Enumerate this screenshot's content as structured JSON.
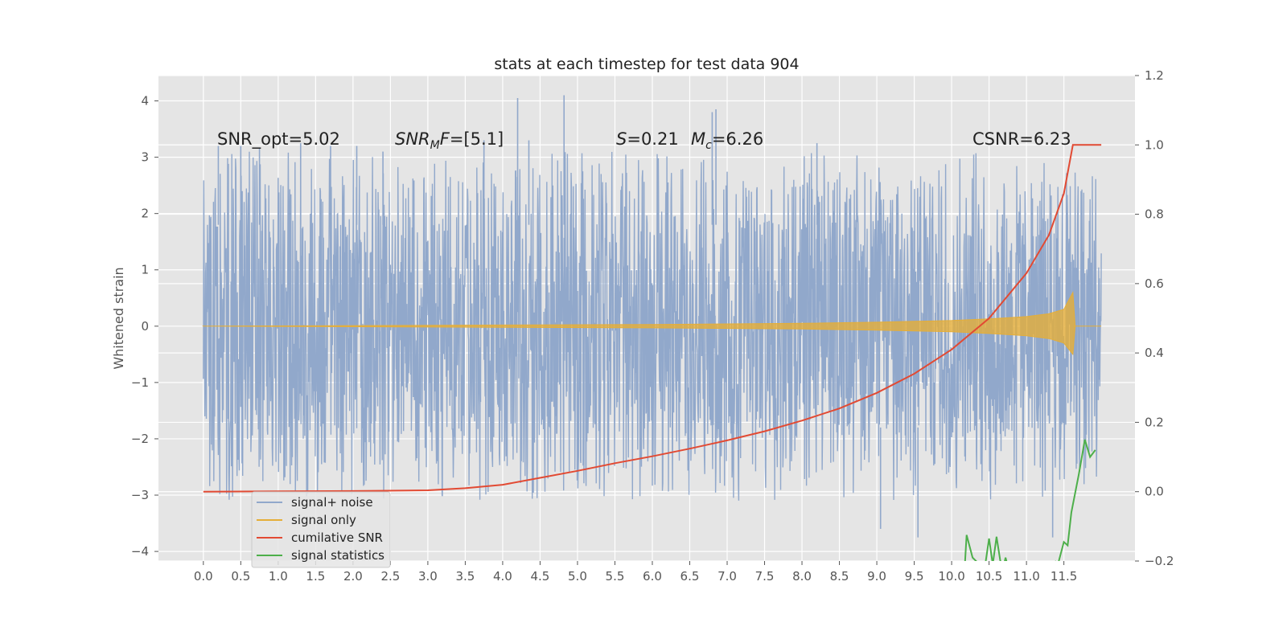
{
  "chart_data": {
    "type": "line",
    "title": "stats at each timestep for test data 904",
    "ylabel": "Whitened strain",
    "xlabel": "",
    "xlim": [
      -0.6,
      12.45
    ],
    "ylim": [
      -4.17,
      4.45
    ],
    "y2lim": [
      -0.2,
      1.2
    ],
    "grid": true,
    "xticks": [
      "0.0",
      "0.5",
      "1.0",
      "1.5",
      "2.0",
      "2.5",
      "3.0",
      "3.5",
      "4.0",
      "4.5",
      "5.0",
      "5.5",
      "6.0",
      "6.5",
      "7.0",
      "7.5",
      "8.0",
      "8.5",
      "9.0",
      "9.5",
      "10.0",
      "10.5",
      "11.0",
      "11.5"
    ],
    "yticks": [
      "4",
      "3",
      "2",
      "1",
      "0",
      "−1",
      "−2",
      "−3",
      "−4"
    ],
    "y2ticks": [
      "1.2",
      "1.0",
      "0.8",
      "0.6",
      "0.4",
      "0.2",
      "0.0",
      "−0.2"
    ],
    "annotations": {
      "snr_opt": "SNR_opt=5.02",
      "snr_mf_sym": "SNR",
      "snr_mf_sub": "M",
      "snr_mf_sym2": "F",
      "snr_mf_val": "=[5.1]",
      "s_sym": "S",
      "s_val": "=0.21",
      "mc_sym": "M",
      "mc_sub": "c",
      "mc_val": "=6.26",
      "csnr": "CSNR=6.23"
    },
    "legend": {
      "position": "lower-left",
      "entries": [
        "signal+ noise",
        "signal only",
        "cumilative SNR",
        "signal statistics"
      ]
    },
    "colors": {
      "signal_noise": "#91a8cb",
      "signal_only": "#e5ae38",
      "cumulative_snr": "#e24a33",
      "signal_stats": "#4daf4a",
      "plot_bg": "#e5e5e5",
      "grid": "#ffffff"
    },
    "series": [
      {
        "name": "signal+ noise",
        "axis": "left",
        "description_kind": "noise_band",
        "x_range": [
          0.0,
          12.0
        ],
        "core_range": [
          -2.0,
          2.0
        ],
        "peak_x": [
          0.2,
          0.5,
          0.75,
          1.3,
          1.7,
          2.05,
          2.4,
          3.75,
          4.2,
          4.35,
          4.82,
          6.8,
          6.85,
          8.2,
          9.05,
          9.55,
          11.35
        ],
        "peak_y": [
          3.2,
          3.2,
          3.15,
          3.25,
          3.2,
          3.2,
          3.1,
          3.3,
          4.05,
          3.3,
          4.1,
          3.8,
          3.85,
          3.25,
          -3.6,
          -3.75,
          -3.75
        ]
      },
      {
        "name": "signal only",
        "axis": "left",
        "x": [
          0.0,
          2.0,
          4.0,
          6.0,
          8.0,
          9.0,
          10.0,
          10.5,
          11.0,
          11.3,
          11.5,
          11.62,
          11.65,
          12.0
        ],
        "upper": [
          0.0,
          0.01,
          0.02,
          0.03,
          0.05,
          0.07,
          0.1,
          0.13,
          0.17,
          0.22,
          0.3,
          0.6,
          0.0,
          0.0
        ],
        "lower": [
          0.0,
          -0.01,
          -0.02,
          -0.03,
          -0.05,
          -0.07,
          -0.1,
          -0.13,
          -0.17,
          -0.22,
          -0.3,
          -0.5,
          0.0,
          0.0
        ]
      },
      {
        "name": "cumilative SNR",
        "axis": "right",
        "x": [
          0.0,
          1.0,
          2.0,
          3.0,
          3.5,
          4.0,
          4.5,
          5.0,
          5.5,
          6.0,
          6.5,
          7.0,
          7.5,
          8.0,
          8.5,
          9.0,
          9.5,
          10.0,
          10.5,
          11.0,
          11.3,
          11.5,
          11.62,
          12.0
        ],
        "y": [
          0.0,
          0.001,
          0.002,
          0.004,
          0.01,
          0.02,
          0.04,
          0.06,
          0.082,
          0.102,
          0.124,
          0.148,
          0.174,
          0.205,
          0.24,
          0.285,
          0.34,
          0.41,
          0.5,
          0.63,
          0.74,
          0.86,
          1.0,
          1.0
        ]
      },
      {
        "name": "signal statistics",
        "axis": "right",
        "x": [
          10.18,
          10.2,
          10.28,
          10.35,
          10.45,
          10.5,
          10.55,
          10.6,
          10.65,
          10.7,
          10.72,
          10.75,
          11.38,
          11.42,
          11.5,
          11.55,
          11.6,
          11.7,
          11.78,
          11.85,
          11.92
        ],
        "y": [
          -0.2,
          -0.125,
          -0.19,
          -0.205,
          -0.21,
          -0.135,
          -0.21,
          -0.13,
          -0.2,
          -0.21,
          -0.19,
          -0.215,
          -0.2,
          -0.21,
          -0.145,
          -0.155,
          -0.06,
          0.05,
          0.15,
          0.1,
          0.12
        ]
      }
    ]
  }
}
